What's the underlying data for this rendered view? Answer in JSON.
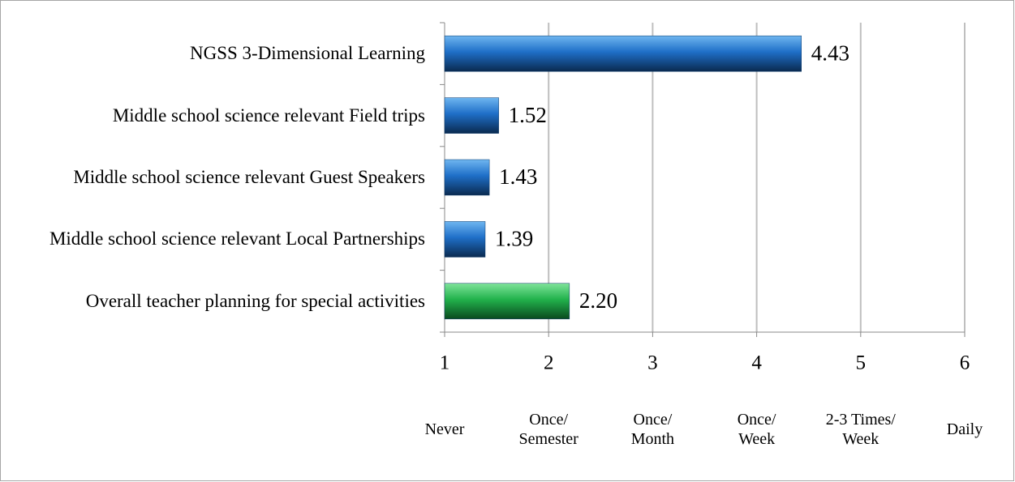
{
  "chart_data": {
    "type": "barh",
    "categories": [
      "NGSS 3-Dimensional Learning",
      "Middle school science relevant Field trips",
      "Middle school science relevant Guest Speakers",
      "Middle school science relevant Local Partnerships",
      "Overall teacher planning for special activities"
    ],
    "values": [
      4.43,
      1.52,
      1.43,
      1.39,
      2.2
    ],
    "value_labels": [
      "4.43",
      "1.52",
      "1.43",
      "1.39",
      "2.20"
    ],
    "colors": [
      "#1f6fc8",
      "#1f6fc8",
      "#1f6fc8",
      "#1f6fc8",
      "#22b24c"
    ],
    "xlim": [
      1,
      6
    ],
    "xticks": [
      1,
      2,
      3,
      4,
      5,
      6
    ],
    "scale_labels": [
      "Never",
      "Once/ Semester",
      "Once/ Month",
      "Once/ Week",
      "2-3 Times/ Week",
      "Daily"
    ],
    "grid": true
  }
}
